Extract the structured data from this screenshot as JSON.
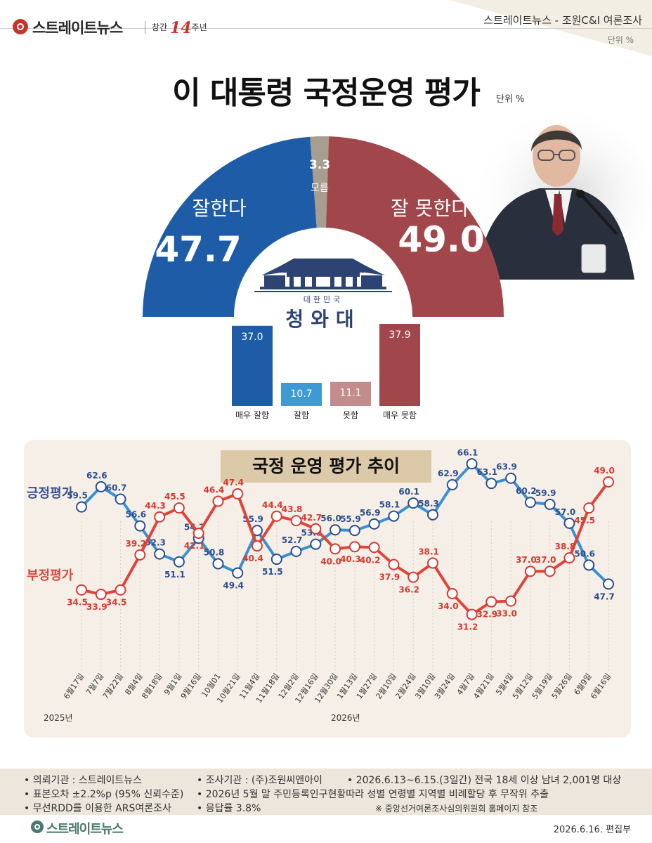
{
  "header": {
    "logo_text": "스트레이트뉴스",
    "anniversary_prefix": "창간",
    "anniversary_number": "14",
    "anniversary_suffix": "주년",
    "source": "스트레이트뉴스 - 조원C&I 여론조사",
    "unit": "단위 %"
  },
  "title": "이 대통령 국정운영 평가",
  "title_unit": "단위 %",
  "gauge": {
    "positive": {
      "label": "잘한다",
      "value": "47.7",
      "color": "#1f5ca8"
    },
    "dont_know": {
      "label": "모름",
      "value": "3.3",
      "color": "#a79e90"
    },
    "negative": {
      "label": "잘 못한다",
      "value": "49.0",
      "color": "#a1474c"
    },
    "emblem_small": "대한민국",
    "emblem_large": "청와대"
  },
  "chart_data": [
    {
      "type": "pie",
      "labels": [
        "잘한다",
        "모름",
        "잘 못한다"
      ],
      "values": [
        47.7,
        3.3,
        49.0
      ],
      "colors": [
        "#1f5ca8",
        "#a79e90",
        "#a1474c"
      ]
    },
    {
      "type": "bar",
      "categories": [
        "매우 잘함",
        "잘함",
        "못함",
        "매우 못함"
      ],
      "values": [
        37.0,
        10.7,
        11.1,
        37.9
      ],
      "labels": [
        "37.0",
        "10.7",
        "11.1",
        "37.9"
      ],
      "colors": [
        "#1f5ca8",
        "#3e9ad3",
        "#c28b8c",
        "#a1474c"
      ]
    },
    {
      "type": "line",
      "title": "국정 운영 평가 추이",
      "x": [
        "6월17일",
        "7월7일",
        "7월22일",
        "8월4일",
        "8월18일",
        "9월1일",
        "9월16일",
        "10월01",
        "10월21일",
        "11월4일",
        "11월18일",
        "12월2일",
        "12월16일",
        "12월30일",
        "1월13일",
        "1월27일",
        "2월10일",
        "2월24일",
        "3월10일",
        "3월24일",
        "4월7일",
        "4월21일",
        "5월4일",
        "5월12일",
        "5월19일",
        "5월26일",
        "6월9일",
        "6월16일"
      ],
      "year_labels": [
        "2025년",
        "2026년"
      ],
      "series": [
        {
          "name": "긍정평가",
          "color": "#3b91cf",
          "values": [
            59.5,
            62.6,
            60.7,
            56.6,
            52.3,
            51.1,
            54.7,
            50.8,
            49.4,
            55.9,
            51.5,
            52.7,
            53.8,
            56.0,
            55.9,
            56.9,
            58.1,
            60.1,
            58.3,
            62.9,
            66.1,
            63.1,
            63.9,
            60.2,
            59.9,
            57.0,
            50.6,
            47.7
          ],
          "labels": [
            "59.5",
            "62.6",
            "60.7",
            "56.6",
            "52.3",
            "51.1",
            "54.7",
            "50.8",
            "49.4",
            "55.9",
            "51.5",
            "52.7",
            "53.8",
            "56.0",
            "55.9",
            "56.9",
            "58.1",
            "60.1",
            "58.3",
            "62.9",
            "66.1",
            "63.1",
            "63.9",
            "60.2",
            "59.9",
            "57.0",
            "50.6",
            "47.7"
          ]
        },
        {
          "name": "부정평가",
          "color": "#e0433a",
          "values": [
            34.5,
            33.9,
            34.5,
            39.2,
            44.3,
            45.5,
            42.1,
            46.4,
            47.4,
            40.4,
            44.4,
            43.8,
            42.7,
            40.0,
            40.3,
            40.2,
            37.9,
            36.2,
            38.1,
            34.0,
            31.2,
            32.9,
            33.0,
            37.0,
            37.0,
            38.8,
            45.5,
            49.0
          ],
          "labels": [
            "34.5",
            "33.9",
            "34.5",
            "39.2",
            "44.3",
            "45.5",
            "42.1",
            "46.4",
            "47.4",
            "40.4",
            "44.4",
            "43.8",
            "42.7",
            "40.0",
            "40.3",
            "40.2",
            "37.9",
            "36.2",
            "38.1",
            "34.0",
            "31.2",
            "32.9",
            "33.0",
            "37.0",
            "37.0",
            "38.8",
            "45.5",
            "49.0"
          ]
        }
      ]
    }
  ],
  "footer": {
    "lines": [
      "• 의뢰기관 : 스트레이트뉴스",
      "• 조사기관 : (주)조원씨앤아이",
      "• 2026.6.13~6.15.(3일간) 전국 18세 이상 남녀 2,001명 대상",
      "• 표본오차 ±2.2%p (95% 신뢰수준)",
      "• 2026년 5월 말 주민등록인구현황따라 성별 연령별 지역별 비례할당 후 무작위 추출",
      "• 무선RDD를 이용한 ARS여론조사",
      "• 응답률 3.8%",
      "※ 중앙선거여론조사심의위원회 홈페이지 참조"
    ],
    "logo_text": "스트레이트뉴스",
    "date": "2026.6.16.  편집부"
  }
}
